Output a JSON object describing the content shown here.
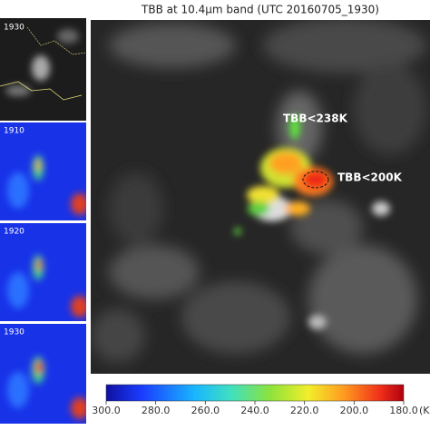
{
  "title": "TBB at 10.4μm band (UTC 20160705_1930)",
  "panels": [
    {
      "label": "1930"
    },
    {
      "label": "1910"
    },
    {
      "label": "1920"
    },
    {
      "label": "1930"
    }
  ],
  "annotations": [
    "TBB<238K",
    "TBB<200K"
  ],
  "colorbar": {
    "range": [
      300,
      180
    ],
    "ticks": [
      {
        "value": 300,
        "label": "300.0"
      },
      {
        "value": 280,
        "label": "280.0"
      },
      {
        "value": 260,
        "label": "260.0"
      },
      {
        "value": 240,
        "label": "240.0"
      },
      {
        "value": 220,
        "label": "220.0"
      },
      {
        "value": 200,
        "label": "200.0"
      },
      {
        "value": 180,
        "label": "180.0"
      }
    ],
    "unit": "(K"
  }
}
